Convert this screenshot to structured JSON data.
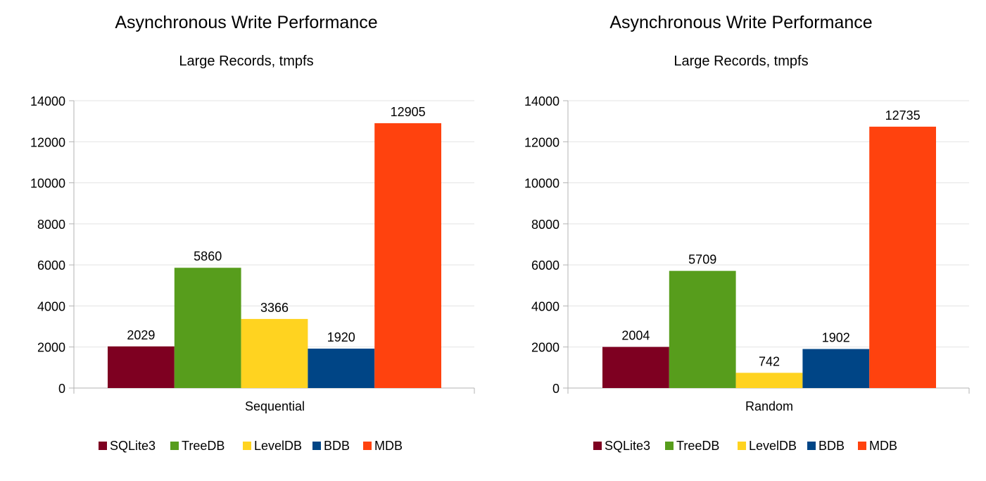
{
  "chart_data": [
    {
      "type": "bar",
      "title": "Asynchronous Write Performance",
      "subtitle": "Large Records, tmpfs",
      "categories": [
        "Sequential"
      ],
      "series": [
        {
          "name": "SQLite3",
          "color": "#7e0021",
          "values": [
            2029
          ]
        },
        {
          "name": "TreeDB",
          "color": "#579d1c",
          "values": [
            5860
          ]
        },
        {
          "name": "LevelDB",
          "color": "#ffd320",
          "values": [
            3366
          ]
        },
        {
          "name": "BDB",
          "color": "#004586",
          "values": [
            1920
          ]
        },
        {
          "name": "MDB",
          "color": "#ff420e",
          "values": [
            12905
          ]
        }
      ],
      "ylim": [
        0,
        14000
      ],
      "yticks": [
        0,
        2000,
        4000,
        6000,
        8000,
        10000,
        12000,
        14000
      ],
      "grid": true,
      "legend_position": "bottom",
      "data_labels": true
    },
    {
      "type": "bar",
      "title": "Asynchronous Write Performance",
      "subtitle": "Large Records, tmpfs",
      "categories": [
        "Random"
      ],
      "series": [
        {
          "name": "SQLite3",
          "color": "#7e0021",
          "values": [
            2004
          ]
        },
        {
          "name": "TreeDB",
          "color": "#579d1c",
          "values": [
            5709
          ]
        },
        {
          "name": "LevelDB",
          "color": "#ffd320",
          "values": [
            742
          ]
        },
        {
          "name": "BDB",
          "color": "#004586",
          "values": [
            1902
          ]
        },
        {
          "name": "MDB",
          "color": "#ff420e",
          "values": [
            12735
          ]
        }
      ],
      "ylim": [
        0,
        14000
      ],
      "yticks": [
        0,
        2000,
        4000,
        6000,
        8000,
        10000,
        12000,
        14000
      ],
      "grid": true,
      "legend_position": "bottom",
      "data_labels": true
    }
  ]
}
